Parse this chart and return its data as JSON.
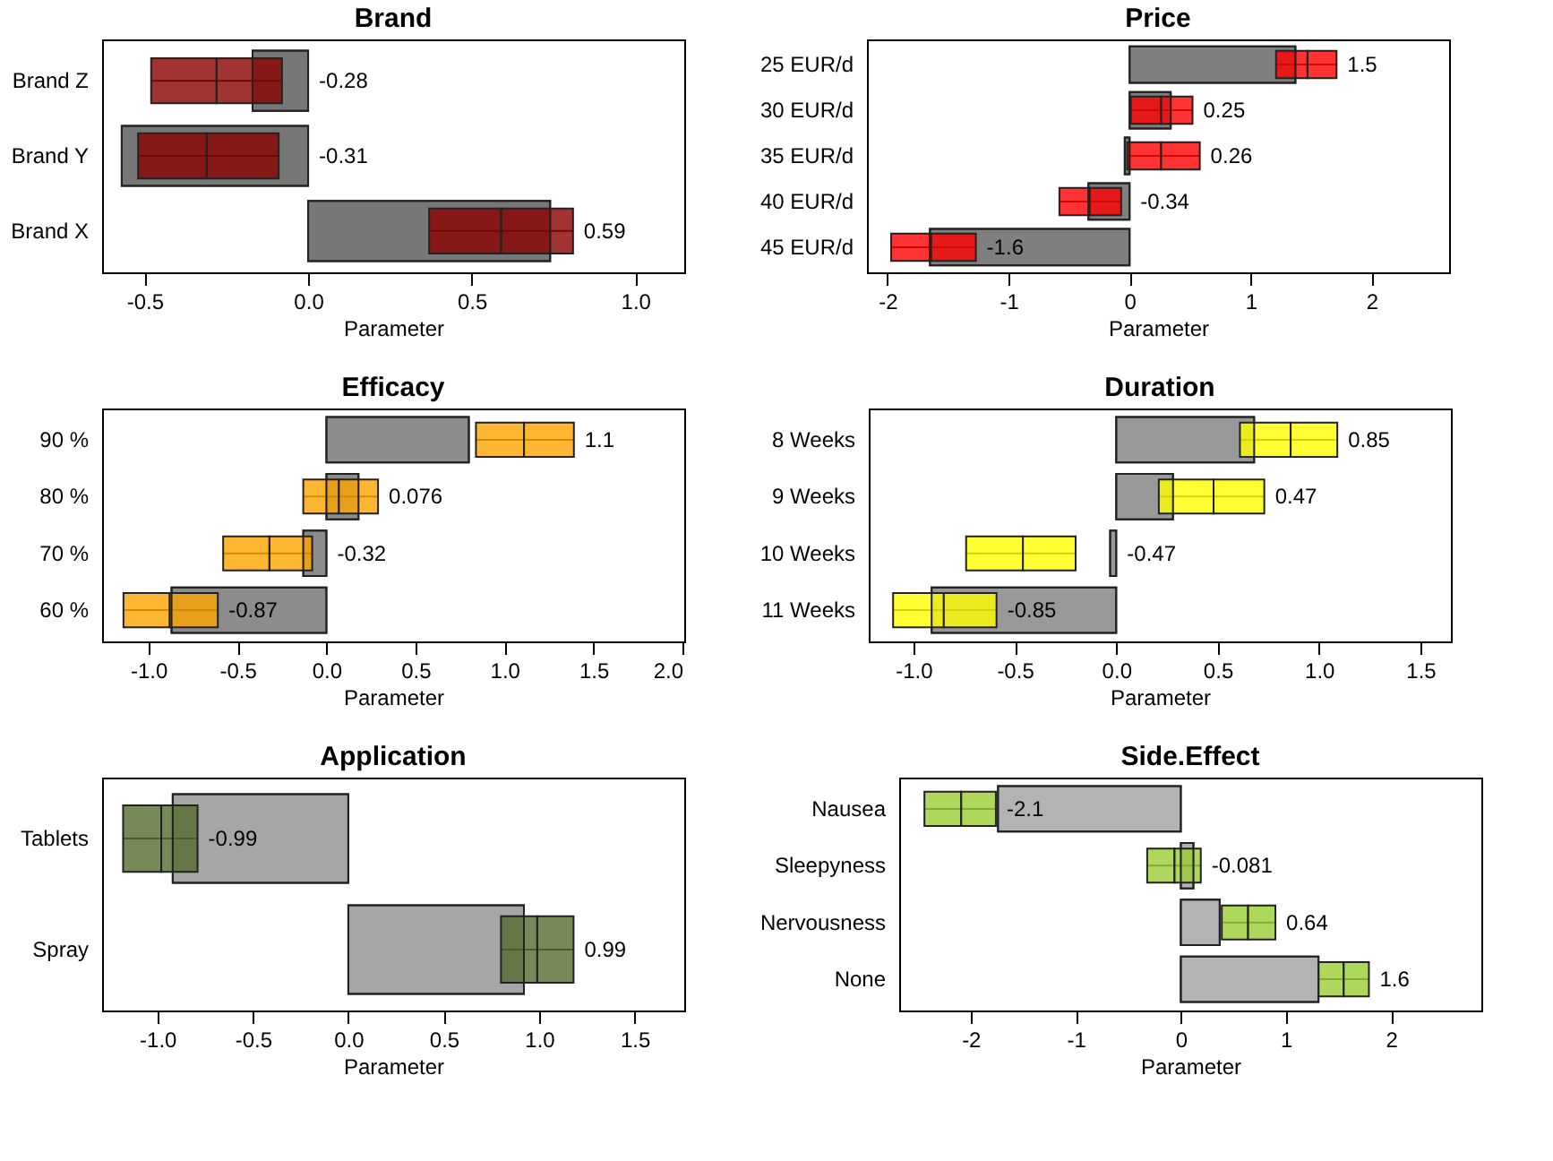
{
  "chart_data": [
    {
      "type": "bar",
      "orientation": "horizontal",
      "title": "Brand",
      "xlabel": "Parameter",
      "categories": [
        "Brand Z",
        "Brand Y",
        "Brand X"
      ],
      "xlim": [
        -0.63,
        1.15
      ],
      "xticks": [
        {
          "value": -0.5,
          "label": "-0.5"
        },
        {
          "value": 0,
          "label": "0.0"
        },
        {
          "value": 0.5,
          "label": "0.5"
        },
        {
          "value": 1,
          "label": "1.0"
        }
      ],
      "series": [
        {
          "color": "#777777",
          "values": [
            -0.17,
            -0.57,
            0.74
          ]
        },
        {
          "type": "box",
          "color": "#8b0000",
          "boxes": [
            {
              "low": -0.48,
              "q1": -0.48,
              "median": -0.28,
              "q3": -0.08,
              "high": -0.08
            },
            {
              "low": -0.52,
              "q1": -0.52,
              "median": -0.31,
              "q3": -0.09,
              "high": -0.09
            },
            {
              "low": 0.37,
              "q1": 0.37,
              "median": 0.59,
              "q3": 0.81,
              "high": 0.81
            }
          ]
        }
      ],
      "annotations": [
        {
          "text": "-0.28",
          "x": 0,
          "y": "Brand Z"
        },
        {
          "text": "-0.31",
          "x": 0,
          "y": "Brand Y"
        },
        {
          "text": "0.59",
          "x": 0.81,
          "y": "Brand X"
        }
      ]
    },
    {
      "type": "bar",
      "orientation": "horizontal",
      "title": "Price",
      "xlabel": "Parameter",
      "categories": [
        "25 EUR/d",
        "30 EUR/d",
        "35 EUR/d",
        "40 EUR/d",
        "45 EUR/d"
      ],
      "xlim": [
        -2.17,
        2.64
      ],
      "xticks": [
        -2,
        -1,
        0,
        1,
        2
      ],
      "series": [
        {
          "color": "#7f7f7f",
          "values": [
            1.37,
            0.34,
            -0.04,
            -0.34,
            -1.65
          ]
        },
        {
          "type": "box",
          "color": "#ff0000",
          "boxes": [
            {
              "low": 1.21,
              "q1": 1.21,
              "median": 1.47,
              "q3": 1.71,
              "high": 1.71
            },
            {
              "low": 0.01,
              "q1": 0.01,
              "median": 0.26,
              "q3": 0.52,
              "high": 0.52
            },
            {
              "low": -0.02,
              "q1": -0.02,
              "median": 0.26,
              "q3": 0.58,
              "high": 0.58
            },
            {
              "low": -0.58,
              "q1": -0.58,
              "median": -0.33,
              "q3": -0.07,
              "high": -0.07
            },
            {
              "low": -1.97,
              "q1": -1.97,
              "median": -1.64,
              "q3": -1.27,
              "high": -1.27
            }
          ]
        }
      ],
      "annotations": [
        {
          "text": "1.5",
          "x": 1.71,
          "y": "25 EUR/d"
        },
        {
          "text": "0.25",
          "x": 0.52,
          "y": "30 EUR/d"
        },
        {
          "text": "0.26",
          "x": 0.58,
          "y": "35 EUR/d"
        },
        {
          "text": "-0.34",
          "x": 0,
          "y": "40 EUR/d"
        },
        {
          "text": "-1.6",
          "x": -1.27,
          "y": "45 EUR/d"
        }
      ]
    },
    {
      "type": "bar",
      "orientation": "horizontal",
      "title": "Efficacy",
      "xlabel": "Parameter",
      "categories": [
        "90 %",
        "80 %",
        "70 %",
        "60 %"
      ],
      "xlim": [
        -1.26,
        2.01
      ],
      "xticks": [
        {
          "value": -1,
          "label": "-1.0"
        },
        {
          "value": -0.5,
          "label": "-0.5"
        },
        {
          "value": 0,
          "label": "0.0"
        },
        {
          "value": 0.5,
          "label": "0.5"
        },
        {
          "value": 1,
          "label": "1.0"
        },
        {
          "value": 1.5,
          "label": "1.5"
        },
        {
          "value": 2,
          "label": "2.0"
        }
      ],
      "series": [
        {
          "color": "#8c8c8c",
          "values": [
            0.8,
            0.18,
            -0.13,
            -0.87
          ]
        },
        {
          "type": "box",
          "color": "#ffa500",
          "boxes": [
            {
              "low": 0.84,
              "q1": 0.84,
              "median": 1.11,
              "q3": 1.39,
              "high": 1.39
            },
            {
              "low": -0.13,
              "q1": -0.13,
              "median": 0.07,
              "q3": 0.29,
              "high": 0.29
            },
            {
              "low": -0.58,
              "q1": -0.58,
              "median": -0.32,
              "q3": -0.08,
              "high": -0.08
            },
            {
              "low": -1.14,
              "q1": -1.14,
              "median": -0.88,
              "q3": -0.61,
              "high": -0.61
            }
          ]
        }
      ],
      "annotations": [
        {
          "text": "1.1",
          "x": 1.39,
          "y": "90 %"
        },
        {
          "text": "0.076",
          "x": 0.29,
          "y": "80 %"
        },
        {
          "text": "-0.32",
          "x": 0,
          "y": "70 %"
        },
        {
          "text": "-0.87",
          "x": -0.61,
          "y": "60 %"
        }
      ]
    },
    {
      "type": "bar",
      "orientation": "horizontal",
      "title": "Duration",
      "xlabel": "Parameter",
      "categories": [
        "8 Weeks",
        "9 Weeks",
        "10 Weeks",
        "11 Weeks"
      ],
      "xlim": [
        -1.22,
        1.65
      ],
      "xticks": [
        {
          "value": -1,
          "label": "-1.0"
        },
        {
          "value": -0.5,
          "label": "-0.5"
        },
        {
          "value": 0,
          "label": "0.0"
        },
        {
          "value": 0.5,
          "label": "0.5"
        },
        {
          "value": 1,
          "label": "1.0"
        },
        {
          "value": 1.5,
          "label": "1.5"
        }
      ],
      "series": [
        {
          "color": "#999999",
          "values": [
            0.68,
            0.28,
            -0.03,
            -0.91
          ]
        },
        {
          "type": "box",
          "color": "#ffff00",
          "boxes": [
            {
              "low": 0.61,
              "q1": 0.61,
              "median": 0.86,
              "q3": 1.09,
              "high": 1.09
            },
            {
              "low": 0.21,
              "q1": 0.21,
              "median": 0.48,
              "q3": 0.73,
              "high": 0.73
            },
            {
              "low": -0.74,
              "q1": -0.74,
              "median": -0.46,
              "q3": -0.2,
              "high": -0.2
            },
            {
              "low": -1.1,
              "q1": -1.1,
              "median": -0.85,
              "q3": -0.59,
              "high": -0.59
            }
          ]
        }
      ],
      "annotations": [
        {
          "text": "0.85",
          "x": 1.09,
          "y": "8 Weeks"
        },
        {
          "text": "0.47",
          "x": 0.73,
          "y": "9 Weeks"
        },
        {
          "text": "-0.47",
          "x": 0,
          "y": "10 Weeks"
        },
        {
          "text": "-0.85",
          "x": -0.59,
          "y": "11 Weeks"
        }
      ]
    },
    {
      "type": "bar",
      "orientation": "horizontal",
      "title": "Application",
      "xlabel": "Parameter",
      "categories": [
        "Tablets",
        "Spray"
      ],
      "xlim": [
        -1.29,
        1.76
      ],
      "xticks": [
        {
          "value": -1,
          "label": "-1.0"
        },
        {
          "value": -0.5,
          "label": "-0.5"
        },
        {
          "value": 0,
          "label": "0.0"
        },
        {
          "value": 0.5,
          "label": "0.5"
        },
        {
          "value": 1,
          "label": "1.0"
        },
        {
          "value": 1.5,
          "label": "1.5"
        }
      ],
      "series": [
        {
          "color": "#a6a6a6",
          "values": [
            -0.92,
            0.92
          ]
        },
        {
          "type": "box",
          "color": "#556b2f",
          "boxes": [
            {
              "low": -1.18,
              "q1": -1.18,
              "median": -0.98,
              "q3": -0.79,
              "high": -0.79
            },
            {
              "low": 0.8,
              "q1": 0.8,
              "median": 0.99,
              "q3": 1.18,
              "high": 1.18
            }
          ]
        }
      ],
      "annotations": [
        {
          "text": "-0.99",
          "x": -0.79,
          "y": "Tablets"
        },
        {
          "text": "0.99",
          "x": 1.18,
          "y": "Spray"
        }
      ]
    },
    {
      "type": "bar",
      "orientation": "horizontal",
      "title": "Side.Effect",
      "xlabel": "Parameter",
      "categories": [
        "Nausea",
        "Sleepyness",
        "Nervousness",
        "None"
      ],
      "xlim": [
        -2.68,
        2.86
      ],
      "xticks": [
        -2,
        -1,
        0,
        1,
        2
      ],
      "series": [
        {
          "color": "#b3b3b3",
          "values": [
            -1.74,
            0.12,
            0.37,
            1.31
          ]
        },
        {
          "type": "box",
          "color": "#9acd32",
          "boxes": [
            {
              "low": -2.44,
              "q1": -2.44,
              "median": -2.09,
              "q3": -1.76,
              "high": -1.76
            },
            {
              "low": -0.32,
              "q1": -0.32,
              "median": -0.06,
              "q3": 0.19,
              "high": 0.19
            },
            {
              "low": 0.39,
              "q1": 0.39,
              "median": 0.64,
              "q3": 0.9,
              "high": 0.9
            },
            {
              "low": 1.31,
              "q1": 1.31,
              "median": 1.55,
              "q3": 1.79,
              "high": 1.79
            }
          ]
        }
      ],
      "annotations": [
        {
          "text": "-2.1",
          "x": -1.76,
          "y": "Nausea"
        },
        {
          "text": "-0.081",
          "x": 0.19,
          "y": "Sleepyness"
        },
        {
          "text": "0.64",
          "x": 0.9,
          "y": "Nervousness"
        },
        {
          "text": "1.6",
          "x": 1.79,
          "y": "None"
        }
      ]
    }
  ]
}
